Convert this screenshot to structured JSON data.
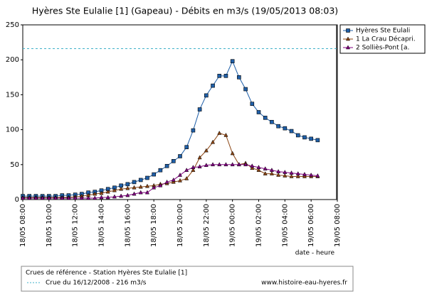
{
  "chart_data": {
    "type": "line",
    "title": "Hyères Ste Eulalie [1] (Gapeau) - Débits en m3/s (19/05/2013 08:03)",
    "x_label": "date - heure",
    "categories": [
      "18/05 08:00",
      null,
      null,
      null,
      "18/05 10:00",
      null,
      null,
      null,
      "18/05 12:00",
      null,
      null,
      null,
      "18/05 14:00",
      null,
      null,
      null,
      "18/05 16:00",
      null,
      null,
      null,
      "18/05 18:00",
      null,
      null,
      null,
      "18/05 20:00",
      null,
      null,
      null,
      "18/05 22:00",
      null,
      null,
      null,
      "19/05 00:00",
      null,
      null,
      null,
      "19/05 02:00",
      null,
      null,
      null,
      "19/05 04:00",
      null,
      null,
      null,
      "19/05 06:00",
      null,
      null,
      null,
      "19/05 08:00"
    ],
    "series": [
      {
        "name": "Hyères Ste Eulali",
        "color": "#1f5fa8",
        "marker": "square",
        "values": [
          5,
          5,
          5,
          5,
          5,
          5,
          6,
          6,
          7,
          8,
          10,
          11,
          13,
          15,
          17,
          20,
          22,
          25,
          28,
          31,
          36,
          42,
          48,
          55,
          62,
          75,
          99,
          129,
          149,
          163,
          177,
          177,
          198,
          175,
          158,
          137,
          125,
          117,
          111,
          105,
          102,
          98,
          92,
          89,
          87,
          85,
          null,
          null,
          null
        ]
      },
      {
        "name": "1 La Crau Décapri.",
        "color": "#8b4513",
        "marker": "triangle",
        "values": [
          3,
          3,
          3,
          3,
          3,
          3,
          3,
          3,
          4,
          5,
          6,
          8,
          9,
          11,
          13,
          15,
          16,
          17,
          18,
          19,
          20,
          22,
          23,
          25,
          27,
          30,
          42,
          60,
          70,
          82,
          95,
          92,
          66,
          50,
          52,
          45,
          42,
          37,
          37,
          35,
          34,
          33,
          33,
          33,
          33,
          33,
          null,
          null,
          null
        ]
      },
      {
        "name": "2 Solliès-Pont [a.",
        "color": "#800080",
        "marker": "triangle",
        "values": [
          2,
          2,
          2,
          2,
          2,
          2,
          2,
          2,
          2,
          2,
          2,
          2,
          3,
          3,
          4,
          5,
          6,
          8,
          10,
          10,
          17,
          20,
          25,
          28,
          35,
          42,
          46,
          47,
          49,
          50,
          50,
          50,
          50,
          50,
          50,
          48,
          46,
          44,
          42,
          40,
          39,
          38,
          37,
          36,
          35,
          34,
          null,
          null,
          null
        ]
      }
    ],
    "ylim": [
      0,
      250
    ],
    "yticks": [
      0,
      50,
      100,
      150,
      200,
      250
    ],
    "reference_value": 216,
    "reference_color": "#3fb0c8",
    "footer_title": "Crues de référence - Station Hyères Ste Eulalie [1]",
    "footer_reference": "Crue du 16/12/2008 - 216 m3/s",
    "footer_site": "www.histoire-eau-hyeres.fr",
    "legend": "top-right"
  }
}
